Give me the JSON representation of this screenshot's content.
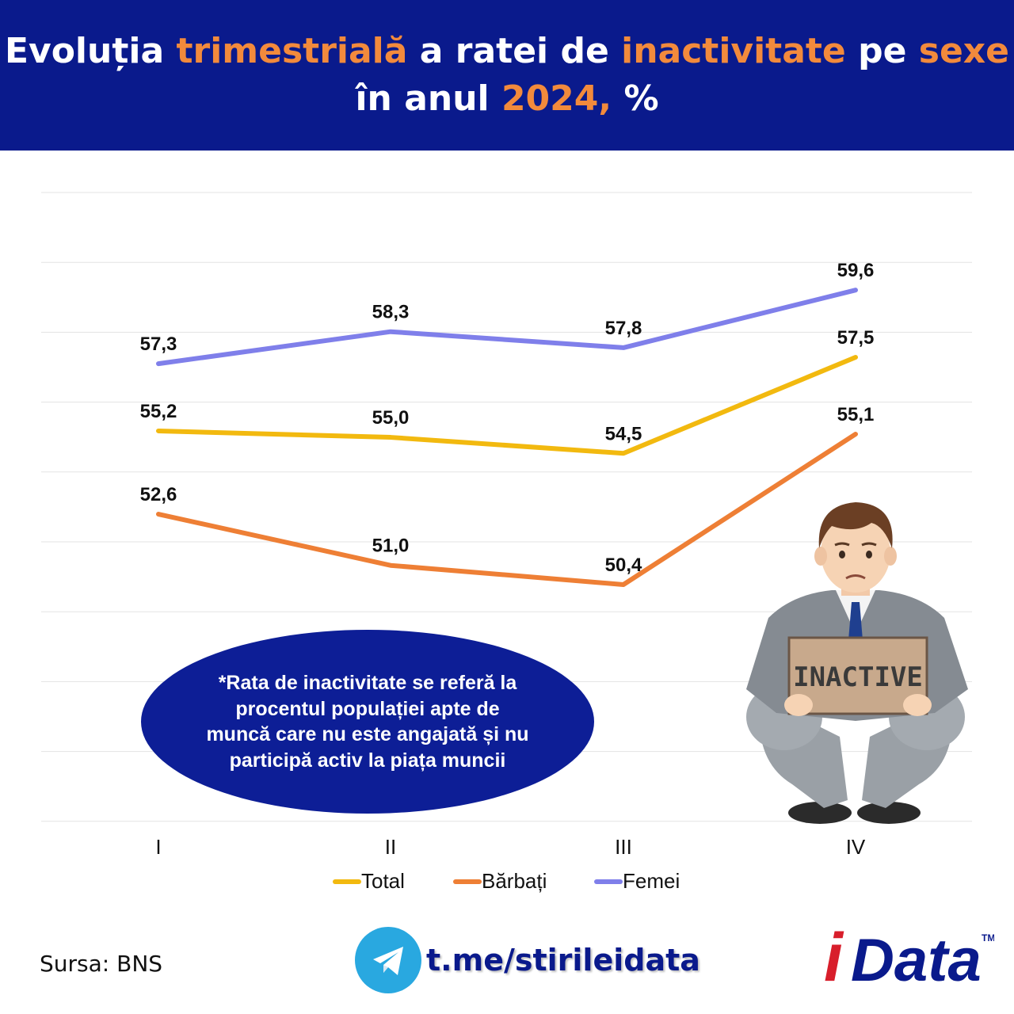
{
  "header": {
    "line1": [
      {
        "text": "Evoluția ",
        "hl": false
      },
      {
        "text": "trimestrială",
        "hl": true
      },
      {
        "text": " a ratei de ",
        "hl": false
      },
      {
        "text": "inactivitate",
        "hl": true
      },
      {
        "text": " pe ",
        "hl": false
      },
      {
        "text": "sexe",
        "hl": true
      }
    ],
    "line2": [
      {
        "text": "în anul ",
        "hl": false
      },
      {
        "text": "2024,",
        "hl": true
      },
      {
        "text": " %",
        "hl": false
      }
    ]
  },
  "chart_data": {
    "type": "line",
    "title": "Evoluția trimestrială a ratei de inactivitate pe sexe în anul 2024, %",
    "xlabel": "",
    "ylabel": "",
    "categories": [
      "I",
      "II",
      "III",
      "IV"
    ],
    "ylim": [
      43,
      60
    ],
    "grid": true,
    "legend_position": "bottom",
    "series": [
      {
        "name": "Total",
        "color": "#f2b90f",
        "values": [
          55.2,
          55.0,
          54.5,
          57.5
        ],
        "labels": [
          "55,2",
          "55,0",
          "54,5",
          "57,5"
        ]
      },
      {
        "name": "Bărbați",
        "color": "#ee7f35",
        "values": [
          52.6,
          51.0,
          50.4,
          55.1
        ],
        "labels": [
          "52,6",
          "51,0",
          "50,4",
          "55,1"
        ]
      },
      {
        "name": "Femei",
        "color": "#7f7fea",
        "values": [
          57.3,
          58.3,
          57.8,
          59.6
        ],
        "labels": [
          "57,3",
          "58,3",
          "57,8",
          "59,6"
        ]
      }
    ]
  },
  "note": {
    "text": "*Rata de inactivitate se referă la procentul populației apte de muncă care nu este angajată și nu participă activ la piața muncii"
  },
  "illustration": {
    "sign_text": "INACTIVE"
  },
  "footer": {
    "source": "Sursa: BNS",
    "telegram_link": "t.me/stirileidata",
    "logo_text": "iData",
    "logo_tm": "TM"
  },
  "colors": {
    "header_bg": "#0a1a8c",
    "accent": "#f28a3c",
    "note_bg": "#0d1e96",
    "telegram": "#29a8e0",
    "logo_red": "#d81e2b",
    "logo_blue": "#0a1a8c"
  }
}
